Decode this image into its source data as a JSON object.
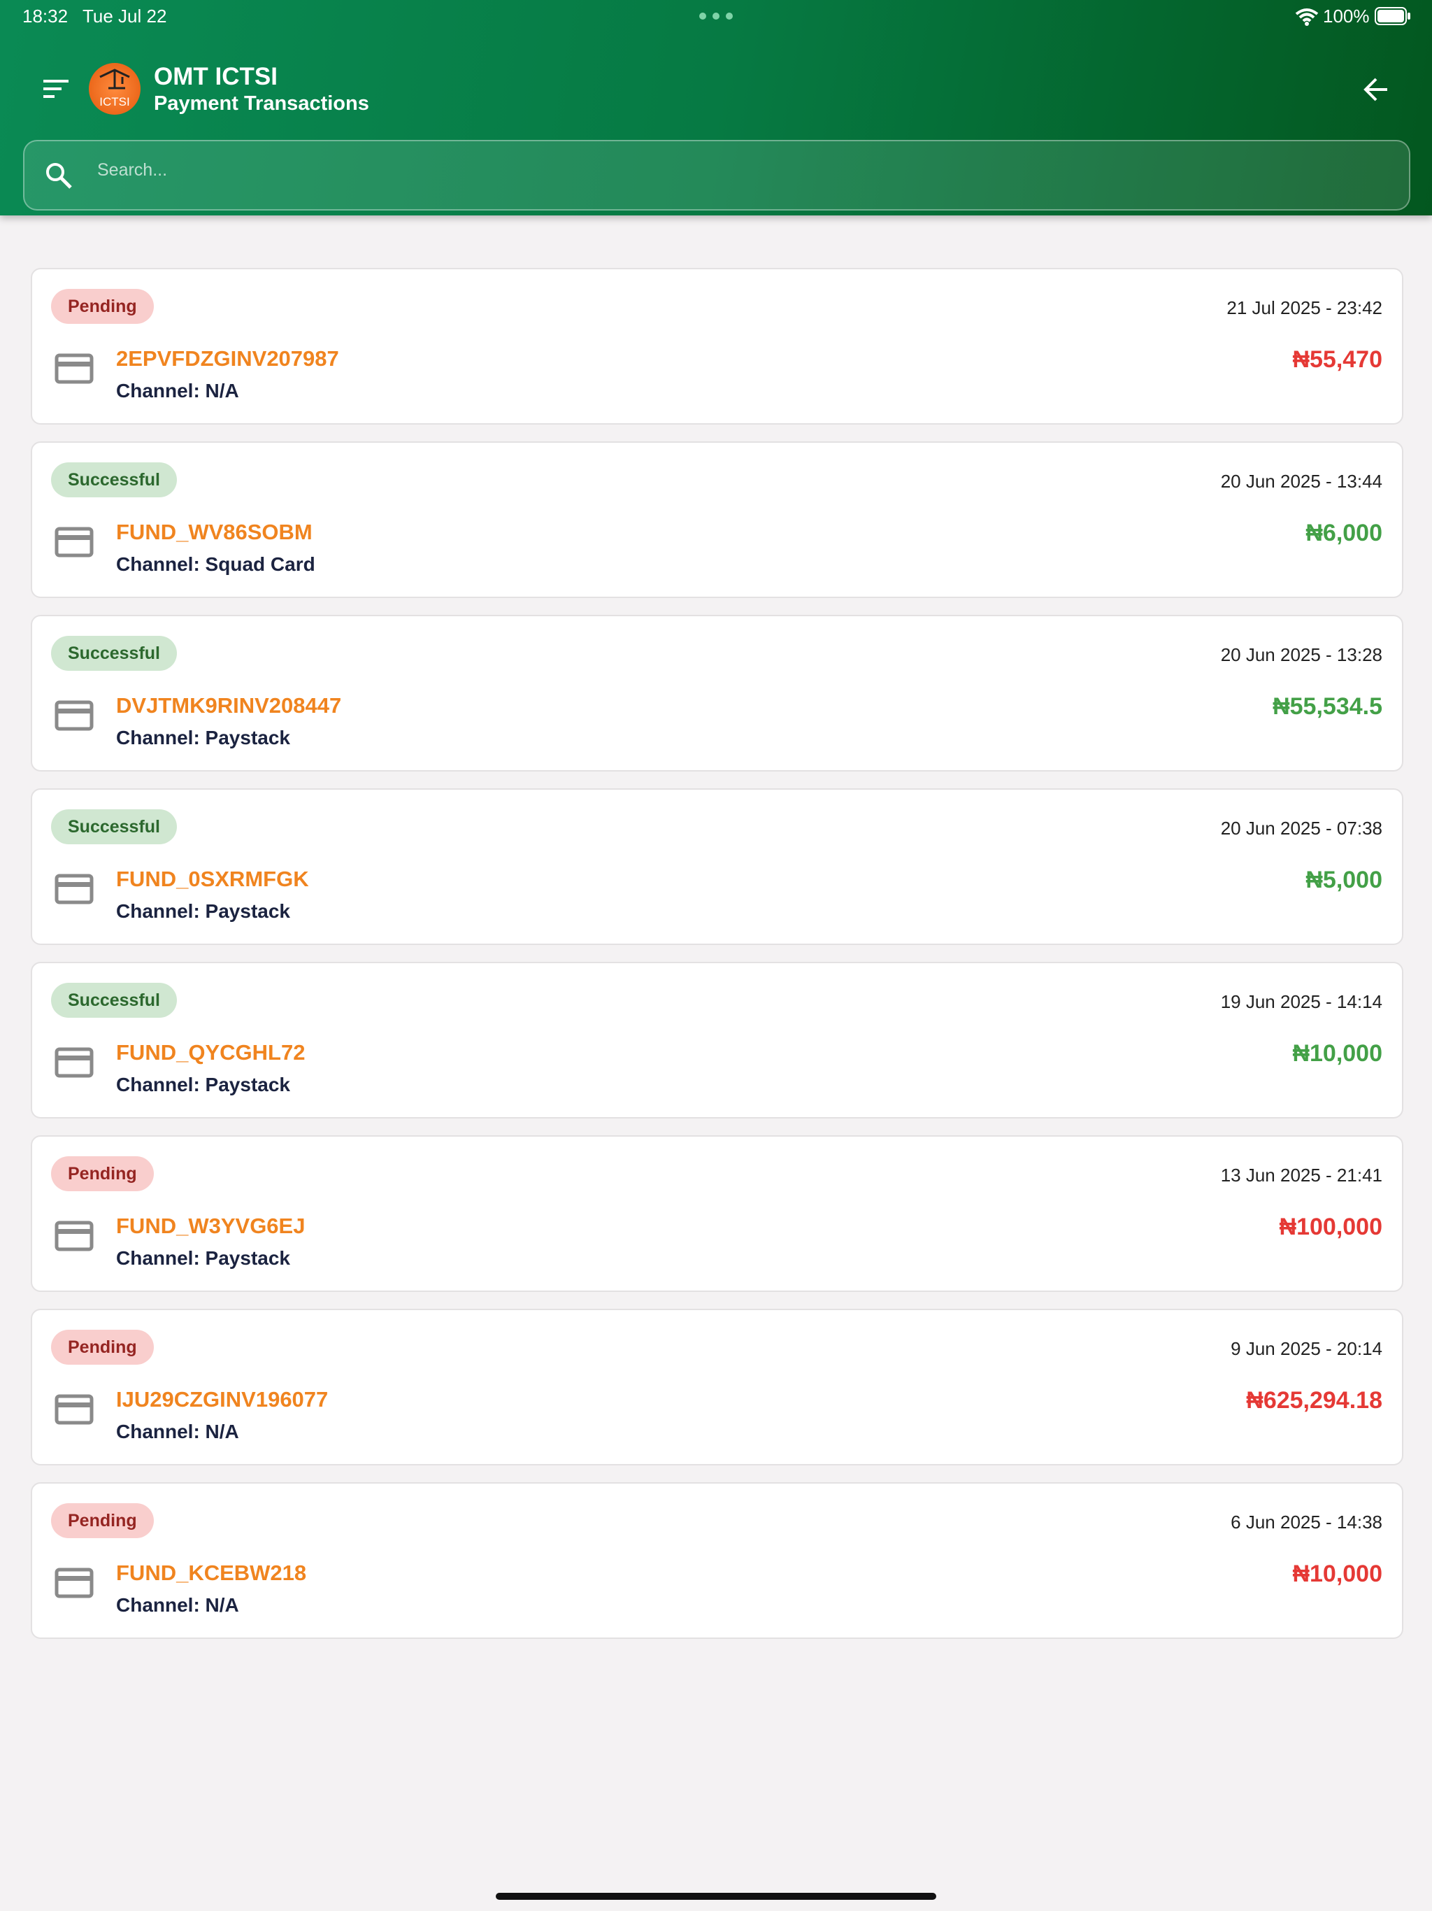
{
  "status_bar": {
    "time": "18:32",
    "date": "Tue Jul 22",
    "battery": "100%"
  },
  "header": {
    "title": "OMT ICTSI",
    "subtitle": "Payment Transactions",
    "logo_text": "ICTSI",
    "search_placeholder": "Search..."
  },
  "transactions": [
    {
      "status": "Pending",
      "datetime": "21 Jul 2025 - 23:42",
      "reference": "2EPVFDZGINV207987",
      "channel": "Channel: N/A",
      "amount": "₦55,470",
      "color": "#e53935"
    },
    {
      "status": "Successful",
      "datetime": "20 Jun 2025 - 13:44",
      "reference": "FUND_WV86SOBM",
      "channel": "Channel: Squad Card",
      "amount": "₦6,000",
      "color": "#43a047"
    },
    {
      "status": "Successful",
      "datetime": "20 Jun 2025 - 13:28",
      "reference": "DVJTMK9RINV208447",
      "channel": "Channel: Paystack",
      "amount": "₦55,534.5",
      "color": "#43a047"
    },
    {
      "status": "Successful",
      "datetime": "20 Jun 2025 - 07:38",
      "reference": "FUND_0SXRMFGK",
      "channel": "Channel: Paystack",
      "amount": "₦5,000",
      "color": "#43a047"
    },
    {
      "status": "Successful",
      "datetime": "19 Jun 2025 - 14:14",
      "reference": "FUND_QYCGHL72",
      "channel": "Channel: Paystack",
      "amount": "₦10,000",
      "color": "#43a047"
    },
    {
      "status": "Pending",
      "datetime": "13 Jun 2025 - 21:41",
      "reference": "FUND_W3YVG6EJ",
      "channel": "Channel: Paystack",
      "amount": "₦100,000",
      "color": "#e53935"
    },
    {
      "status": "Pending",
      "datetime": "9 Jun 2025 - 20:14",
      "reference": "IJU29CZGINV196077",
      "channel": "Channel: N/A",
      "amount": "₦625,294.18",
      "color": "#e53935"
    },
    {
      "status": "Pending",
      "datetime": "6 Jun 2025 - 14:38",
      "reference": "FUND_KCEBW218",
      "channel": "Channel: N/A",
      "amount": "₦10,000",
      "color": "#e53935"
    }
  ]
}
